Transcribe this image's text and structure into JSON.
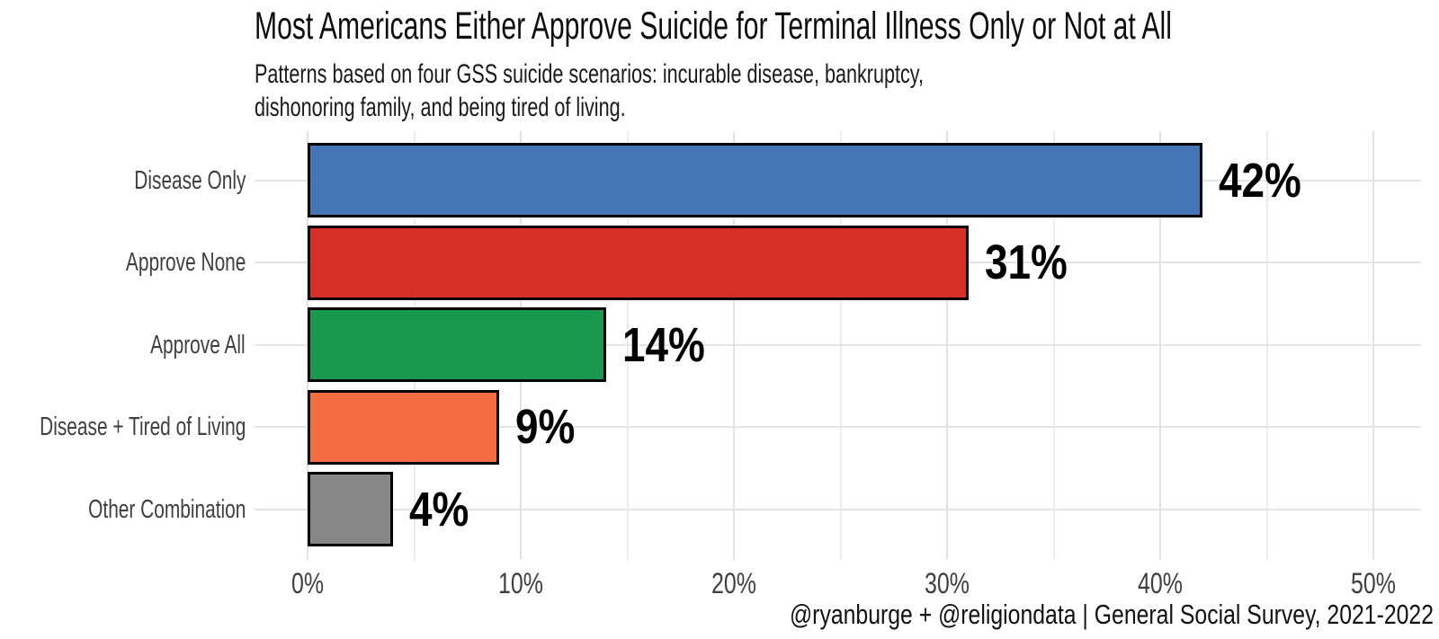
{
  "chart_data": {
    "type": "bar",
    "orientation": "horizontal",
    "title": "Most Americans Either Approve Suicide for Terminal Illness Only or Not at All",
    "subtitle": "Patterns based on four GSS suicide scenarios: incurable disease, bankruptcy,\ndishonoring family, and being tired of living.",
    "caption": "@ryanburge + @religiondata | General Social Survey, 2021-2022",
    "categories": [
      "Disease Only",
      "Approve None",
      "Approve All",
      "Disease + Tired of Living",
      "Other Combination"
    ],
    "values": [
      42,
      31,
      14,
      9,
      4
    ],
    "value_labels": [
      "42%",
      "31%",
      "14%",
      "9%",
      "4%"
    ],
    "bar_colors": [
      "#4575b4",
      "#d73027",
      "#1a9850",
      "#f46d43",
      "#878787"
    ],
    "bar_border_color": "#000000",
    "xlabel": "",
    "ylabel": "",
    "x_axis": {
      "tick_values": [
        0,
        10,
        20,
        30,
        40,
        50
      ],
      "tick_labels": [
        "0%",
        "10%",
        "20%",
        "30%",
        "40%",
        "50%"
      ],
      "minor_tick_values": [
        5,
        15,
        25,
        35,
        45
      ],
      "range": [
        0,
        52.5
      ]
    },
    "grid": {
      "show": true,
      "vertical_major_color": "#e2e2e2",
      "vertical_minor_color": "#ececec",
      "horizontal_color": "#e4e4e4"
    },
    "legend": "none",
    "background_color": "#ffffff"
  }
}
